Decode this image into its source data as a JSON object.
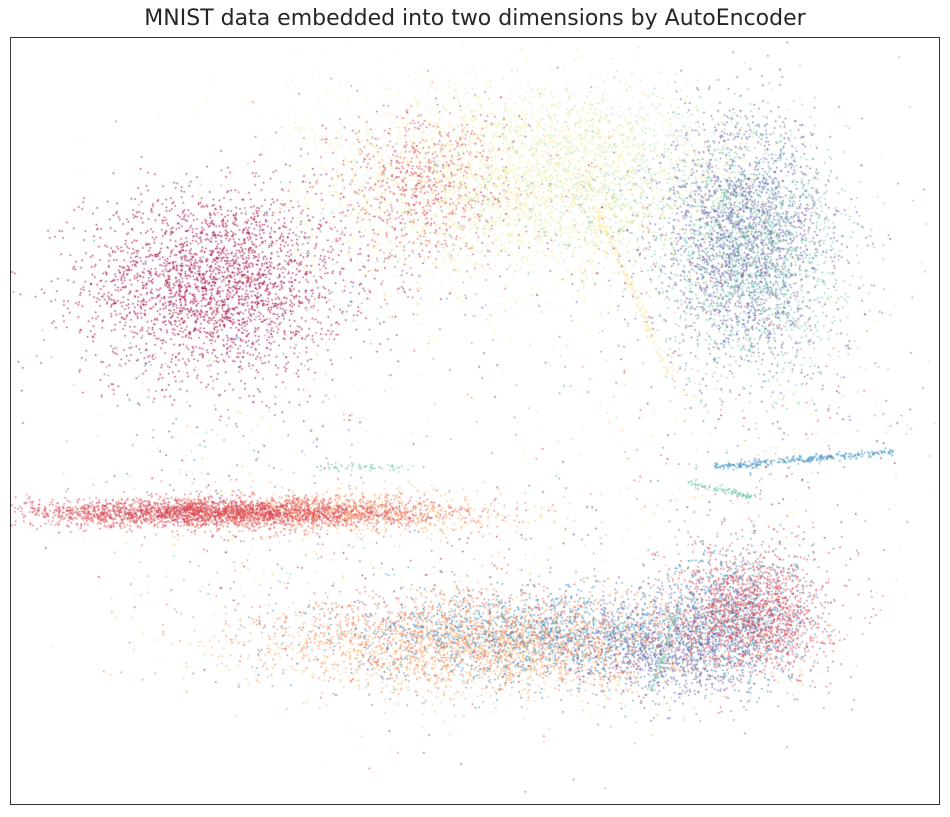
{
  "chart_data": {
    "type": "scatter",
    "title": "MNIST data embedded into two dimensions by AutoEncoder",
    "xlabel": "",
    "ylabel": "",
    "xlim": [
      0,
      100
    ],
    "ylim": [
      0,
      100
    ],
    "grid": false,
    "legend": "none",
    "axes_ticks": "hidden",
    "colormap": "Spectral",
    "class_colors": [
      "#9e0142",
      "#d53e4f",
      "#f46d43",
      "#fdae61",
      "#fee08b",
      "#e6f598",
      "#abdda4",
      "#66c2a5",
      "#3288bd",
      "#5e4fa2"
    ],
    "clusters": [
      {
        "class_index": 0,
        "shape": "ellipse",
        "center": [
          22,
          68
        ],
        "spread": [
          7,
          6
        ],
        "n": 2600
      },
      {
        "class_index": 1,
        "shape": "ellipse",
        "center": [
          22,
          38
        ],
        "spread": [
          11,
          0.9
        ],
        "n": 2600
      },
      {
        "class_index": 1,
        "shape": "ellipse",
        "center": [
          44,
          81
        ],
        "spread": [
          5,
          5
        ],
        "n": 700
      },
      {
        "class_index": 1,
        "shape": "ellipse",
        "center": [
          80,
          25
        ],
        "spread": [
          4,
          4
        ],
        "n": 1500
      },
      {
        "class_index": 2,
        "shape": "ellipse",
        "center": [
          52,
          22
        ],
        "spread": [
          13,
          3
        ],
        "n": 1400
      },
      {
        "class_index": 2,
        "shape": "ellipse",
        "center": [
          30,
          38
        ],
        "spread": [
          10,
          1.2
        ],
        "n": 600
      },
      {
        "class_index": 3,
        "shape": "ellipse",
        "center": [
          52,
          20
        ],
        "spread": [
          13,
          3
        ],
        "n": 1500
      },
      {
        "class_index": 3,
        "shape": "ellipse",
        "center": [
          38,
          38
        ],
        "spread": [
          8,
          1.5
        ],
        "n": 500
      },
      {
        "class_index": 4,
        "shape": "ellipse",
        "center": [
          56,
          82
        ],
        "spread": [
          10,
          6
        ],
        "n": 1400
      },
      {
        "class_index": 5,
        "shape": "ellipse",
        "center": [
          50,
          80
        ],
        "spread": [
          12,
          7
        ],
        "n": 1200
      },
      {
        "class_index": 6,
        "shape": "ellipse",
        "center": [
          64,
          82
        ],
        "spread": [
          8,
          6
        ],
        "n": 900
      },
      {
        "class_index": 7,
        "shape": "ellipse",
        "center": [
          80,
          72
        ],
        "spread": [
          5,
          8
        ],
        "n": 1700
      },
      {
        "class_index": 8,
        "shape": "ellipse",
        "center": [
          58,
          22
        ],
        "spread": [
          11,
          3
        ],
        "n": 1600
      },
      {
        "class_index": 8,
        "shape": "ellipse",
        "center": [
          78,
          24
        ],
        "spread": [
          4,
          5
        ],
        "n": 900
      },
      {
        "class_index": 9,
        "shape": "ellipse",
        "center": [
          79,
          74
        ],
        "spread": [
          4.5,
          8
        ],
        "n": 1800
      },
      {
        "class_index": 9,
        "shape": "ellipse",
        "center": [
          70,
          20
        ],
        "spread": [
          5,
          3
        ],
        "n": 700
      },
      {
        "class_index": 4,
        "shape": "line",
        "from": [
          63,
          78
        ],
        "to": [
          71,
          56
        ],
        "n": 180
      },
      {
        "class_index": 8,
        "shape": "line",
        "from": [
          76,
          44
        ],
        "to": [
          95,
          46
        ],
        "n": 260
      },
      {
        "class_index": 7,
        "shape": "line",
        "from": [
          73,
          42
        ],
        "to": [
          80,
          40
        ],
        "n": 90
      },
      {
        "class_index": 7,
        "shape": "line",
        "from": [
          69,
          15
        ],
        "to": [
          72,
          26
        ],
        "n": 110
      },
      {
        "class_index": 7,
        "shape": "line",
        "from": [
          33,
          44
        ],
        "to": [
          43,
          44
        ],
        "n": 60
      }
    ],
    "background_noise": {
      "n": 2200
    }
  }
}
